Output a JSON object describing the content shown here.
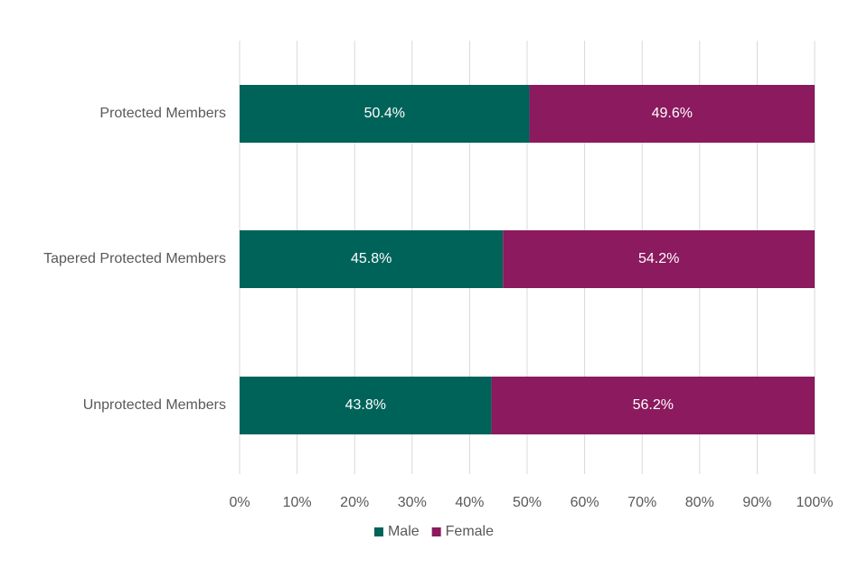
{
  "chart_data": {
    "type": "bar",
    "orientation": "horizontal",
    "stacked": true,
    "categories": [
      "Protected Members",
      "Tapered Protected Members",
      "Unprotected Members"
    ],
    "series": [
      {
        "name": "Male",
        "color": "#00635a",
        "values": [
          50.4,
          45.8,
          43.8
        ],
        "labels": [
          "50.4%",
          "45.8%",
          "43.8%"
        ]
      },
      {
        "name": "Female",
        "color": "#8b1a5e",
        "values": [
          49.6,
          54.2,
          56.2
        ],
        "labels": [
          "49.6%",
          "54.2%",
          "56.2%"
        ]
      }
    ],
    "xlim": [
      0,
      100
    ],
    "xticks": [
      "0%",
      "10%",
      "20%",
      "30%",
      "40%",
      "50%",
      "60%",
      "70%",
      "80%",
      "90%",
      "100%"
    ],
    "grid": true,
    "legend": "bottom",
    "title": "",
    "xlabel": "",
    "ylabel": ""
  }
}
